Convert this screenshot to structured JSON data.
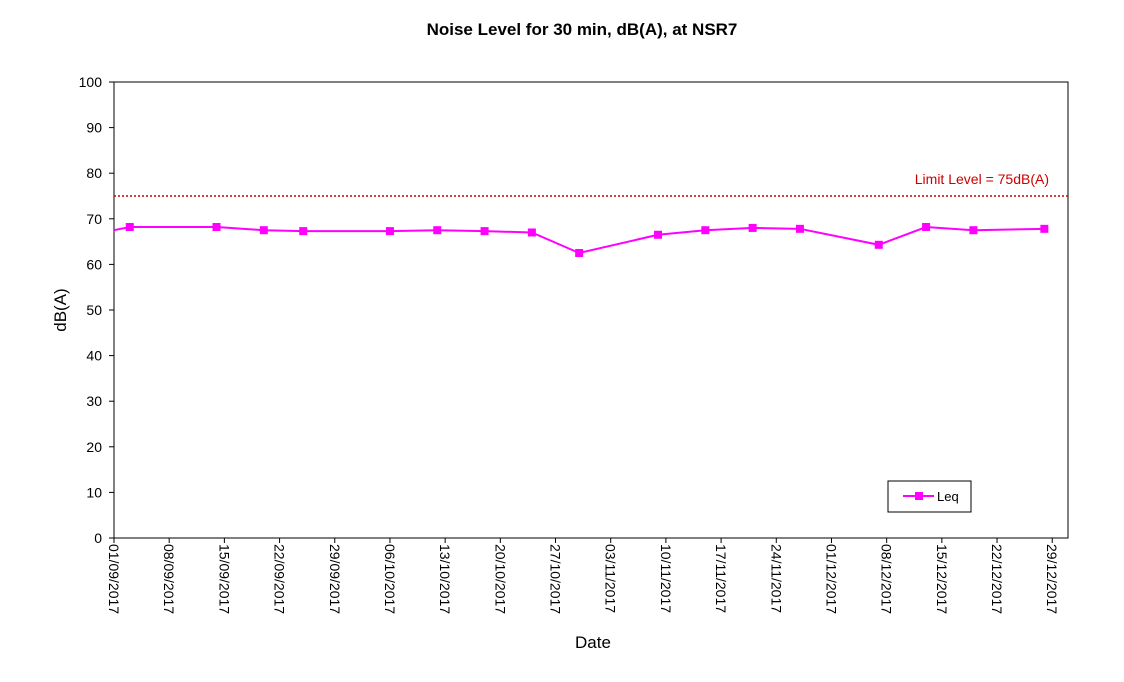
{
  "chart_data": {
    "type": "line",
    "title": "Noise Level for 30 min, dB(A), at NSR7",
    "xlabel": "Date",
    "ylabel": "dB(A)",
    "ylim": [
      0,
      100
    ],
    "yticks": [
      "0",
      "10",
      "20",
      "30",
      "40",
      "50",
      "60",
      "70",
      "80",
      "90",
      "100"
    ],
    "xlim": [
      "2017-09-01",
      "2017-12-31"
    ],
    "xtick_labels": [
      "01/09/2017",
      "08/09/2017",
      "15/09/2017",
      "22/09/2017",
      "29/09/2017",
      "06/10/2017",
      "13/10/2017",
      "20/10/2017",
      "27/10/2017",
      "03/11/2017",
      "10/11/2017",
      "17/11/2017",
      "24/11/2017",
      "01/12/2017",
      "08/12/2017",
      "15/12/2017",
      "22/12/2017",
      "29/12/2017"
    ],
    "grid": false,
    "legend_position": "bottom-right",
    "series": [
      {
        "name": "Leq",
        "color": "#ff00ff",
        "marker": "square",
        "points": [
          {
            "x": "2017-09-03",
            "y": 68.2
          },
          {
            "x": "2017-09-14",
            "y": 68.2
          },
          {
            "x": "2017-09-20",
            "y": 67.5
          },
          {
            "x": "2017-09-25",
            "y": 67.3
          },
          {
            "x": "2017-10-06",
            "y": 67.3
          },
          {
            "x": "2017-10-12",
            "y": 67.5
          },
          {
            "x": "2017-10-18",
            "y": 67.3
          },
          {
            "x": "2017-10-24",
            "y": 67.0
          },
          {
            "x": "2017-10-30",
            "y": 62.5
          },
          {
            "x": "2017-11-09",
            "y": 66.5
          },
          {
            "x": "2017-11-15",
            "y": 67.5
          },
          {
            "x": "2017-11-21",
            "y": 68.0
          },
          {
            "x": "2017-11-27",
            "y": 67.8
          },
          {
            "x": "2017-12-07",
            "y": 64.3
          },
          {
            "x": "2017-12-13",
            "y": 68.2
          },
          {
            "x": "2017-12-19",
            "y": 67.5
          },
          {
            "x": "2017-12-28",
            "y": 67.8
          }
        ]
      }
    ],
    "reference_line": {
      "label": "Limit Level = 75dB(A)",
      "y": 75,
      "color": "#cc0000",
      "style": "dotted"
    }
  }
}
